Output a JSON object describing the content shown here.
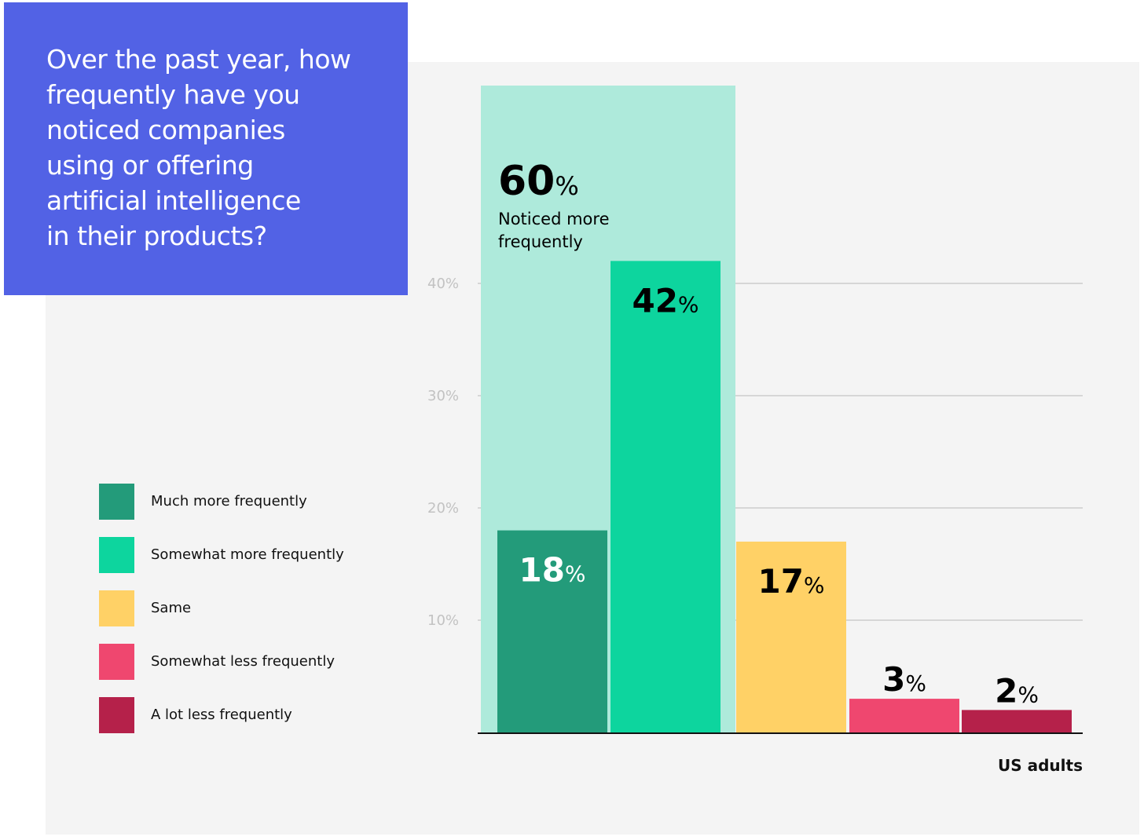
{
  "title_lines": [
    "Over the past year, how",
    "frequently have you",
    "noticed companies",
    "using or offering",
    "artificial intelligence",
    "in their products?"
  ],
  "chart_data": {
    "type": "bar",
    "title": "Over the past year, how frequently have you noticed companies using or offering artificial intelligence in their products?",
    "xlabel": "US adults",
    "ylabel": "",
    "ylim": [
      0,
      50
    ],
    "yticks": [
      10,
      20,
      30,
      40
    ],
    "ytick_labels": [
      "10%",
      "20%",
      "30%",
      "40%"
    ],
    "grid": true,
    "categories": [
      "Much more frequently",
      "Somewhat more frequently",
      "Same",
      "Somewhat less frequently",
      "A lot less frequently"
    ],
    "values": [
      18,
      42,
      17,
      3,
      2
    ],
    "value_labels": [
      "18",
      "42",
      "17",
      "3",
      "2"
    ],
    "percent_sign": "%",
    "colors": [
      "#239b7a",
      "#0dd59e",
      "#ffd166",
      "#ef476f",
      "#b5214a"
    ],
    "label_colors": [
      "#ffffff",
      "#000000",
      "#000000",
      "#000000",
      "#000000"
    ],
    "highlight": {
      "value": 60,
      "value_label": "60",
      "label_lines": [
        "Noticed more",
        "frequently"
      ],
      "color": "#aeeadb",
      "spans_categories": [
        0,
        1
      ]
    }
  },
  "colors": {
    "title_background": "#5262e5",
    "panel_background": "#f4f4f4"
  }
}
